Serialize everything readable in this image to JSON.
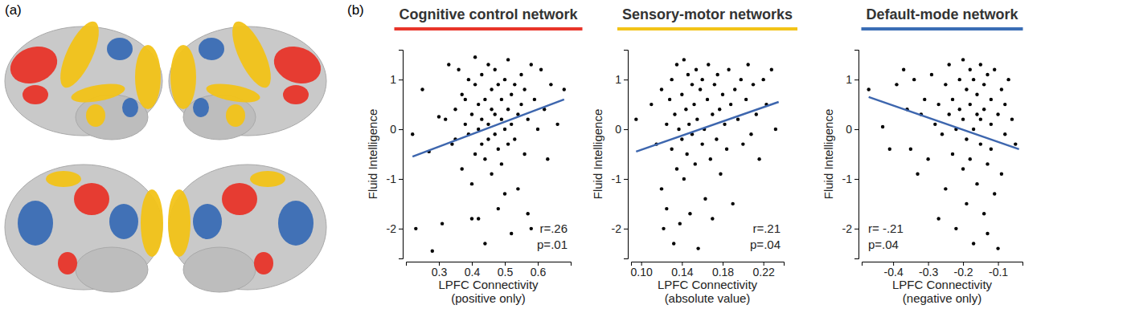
{
  "panel_labels": [
    "(a)",
    "(b)"
  ],
  "chart_data": [
    {
      "type": "scatter",
      "title": "Cognitive control network",
      "color": "#e8352a",
      "x_label": [
        "LPFC Connectivity",
        "(positive only)"
      ],
      "y_label": "Fluid Intelligence",
      "xlim": [
        0.2,
        0.7
      ],
      "xticks": [
        0.3,
        0.4,
        0.5,
        0.6
      ],
      "ylim": [
        -2.6,
        1.6
      ],
      "yticks": [
        -2,
        -1,
        0,
        1
      ],
      "annotations": [
        "r=.26",
        "p=.01"
      ],
      "series": [
        {
          "type": "scatter",
          "color": "#000000",
          "marker": "circle",
          "x": [
            0.22,
            0.23,
            0.25,
            0.27,
            0.28,
            0.3,
            0.31,
            0.32,
            0.33,
            0.34,
            0.35,
            0.35,
            0.36,
            0.37,
            0.37,
            0.38,
            0.38,
            0.39,
            0.39,
            0.4,
            0.4,
            0.4,
            0.41,
            0.41,
            0.41,
            0.42,
            0.42,
            0.42,
            0.43,
            0.43,
            0.43,
            0.44,
            0.44,
            0.44,
            0.45,
            0.45,
            0.45,
            0.46,
            0.46,
            0.46,
            0.47,
            0.47,
            0.47,
            0.48,
            0.48,
            0.48,
            0.49,
            0.49,
            0.49,
            0.5,
            0.5,
            0.5,
            0.51,
            0.51,
            0.51,
            0.52,
            0.52,
            0.52,
            0.53,
            0.53,
            0.54,
            0.54,
            0.55,
            0.55,
            0.56,
            0.56,
            0.57,
            0.57,
            0.58,
            0.58,
            0.59,
            0.6,
            0.61,
            0.62,
            0.63,
            0.64,
            0.66,
            0.68
          ],
          "values": [
            -0.1,
            -2.0,
            0.8,
            -0.45,
            -2.45,
            0.25,
            -1.9,
            0.2,
            1.3,
            -0.3,
            0.4,
            -0.2,
            1.2,
            0.7,
            -0.8,
            0.1,
            0.6,
            -0.1,
            1.0,
            -1.1,
            0.3,
            -1.8,
            0.9,
            1.45,
            -0.5,
            0.0,
            0.5,
            -1.8,
            -0.3,
            1.1,
            0.2,
            -2.3,
            0.6,
            -0.6,
            1.3,
            0.1,
            -0.2,
            0.8,
            -0.9,
            0.4,
            -0.1,
            1.2,
            0.3,
            -0.4,
            0.9,
            -1.6,
            0.2,
            0.6,
            -0.7,
            1.0,
            0.0,
            -1.3,
            0.4,
            1.4,
            -0.3,
            0.7,
            0.1,
            -2.1,
            -0.2,
            0.9,
            0.3,
            -1.2,
            1.1,
            0.5,
            -0.5,
            0.8,
            0.2,
            -1.7,
            1.3,
            -2.0,
            0.6,
            0.0,
            1.2,
            0.4,
            -0.6,
            0.9,
            0.1,
            0.8
          ]
        },
        {
          "type": "line",
          "color": "#3d66ae",
          "line_style": "solid",
          "x": [
            0.22,
            0.68
          ],
          "values": [
            -0.55,
            0.6
          ]
        }
      ]
    },
    {
      "type": "scatter",
      "title": "Sensory-motor networks",
      "color": "#f2c318",
      "x_label": [
        "LPFC Connectivity",
        "(absolute value)"
      ],
      "y_label": "Fluid Intelligence",
      "xlim": [
        0.09,
        0.24
      ],
      "xticks": [
        {
          "value": 0.1,
          "label": "0.10"
        },
        0.14,
        0.18,
        0.22
      ],
      "ylim": [
        -2.6,
        1.6
      ],
      "yticks": [
        -2,
        -1,
        0,
        1
      ],
      "annotations": [
        "r=.21",
        "p=.04"
      ],
      "series": [
        {
          "type": "scatter",
          "color": "#000000",
          "marker": "circle",
          "x": [
            0.095,
            0.11,
            0.115,
            0.12,
            0.12,
            0.122,
            0.125,
            0.125,
            0.128,
            0.13,
            0.13,
            0.132,
            0.133,
            0.135,
            0.135,
            0.137,
            0.138,
            0.14,
            0.14,
            0.142,
            0.142,
            0.144,
            0.145,
            0.146,
            0.147,
            0.148,
            0.15,
            0.15,
            0.152,
            0.153,
            0.154,
            0.155,
            0.156,
            0.158,
            0.16,
            0.16,
            0.162,
            0.163,
            0.165,
            0.166,
            0.168,
            0.17,
            0.17,
            0.172,
            0.174,
            0.175,
            0.177,
            0.178,
            0.18,
            0.182,
            0.184,
            0.186,
            0.188,
            0.19,
            0.192,
            0.195,
            0.198,
            0.2,
            0.203,
            0.205,
            0.208,
            0.21,
            0.213,
            0.216,
            0.22,
            0.223,
            0.228,
            0.232
          ],
          "values": [
            0.2,
            0.5,
            -0.3,
            0.8,
            -1.2,
            -2.0,
            0.1,
            -1.6,
            0.6,
            -0.4,
            1.0,
            -2.3,
            0.3,
            -0.8,
            1.3,
            0.0,
            -1.9,
            0.7,
            -0.2,
            1.4,
            -1.0,
            0.4,
            -0.5,
            1.1,
            0.1,
            -1.7,
            0.9,
            -0.1,
            0.5,
            -0.7,
            1.2,
            0.2,
            -2.4,
            0.8,
            -0.3,
            1.0,
            0.0,
            -1.4,
            0.6,
            1.3,
            -0.6,
            0.3,
            -1.8,
            0.9,
            -0.2,
            1.1,
            0.4,
            -0.9,
            0.7,
            0.1,
            -0.4,
            1.2,
            0.5,
            -1.5,
            0.8,
            0.2,
            1.0,
            -0.3,
            0.6,
            1.3,
            -0.1,
            0.9,
            0.3,
            -0.6,
            1.0,
            0.5,
            1.2,
            0.0
          ]
        },
        {
          "type": "line",
          "color": "#3d66ae",
          "line_style": "solid",
          "x": [
            0.095,
            0.235
          ],
          "values": [
            -0.45,
            0.55
          ]
        }
      ]
    },
    {
      "type": "scatter",
      "title": "Default-mode network",
      "color": "#3a6db5",
      "x_label": [
        "LPFC Connectivity",
        "(negative only)"
      ],
      "y_label": "Fluid Intelligence",
      "xlim": [
        -0.49,
        -0.03
      ],
      "xticks": [
        -0.4,
        -0.3,
        -0.2,
        -0.1
      ],
      "ylim": [
        -2.6,
        1.6
      ],
      "yticks": [
        -2,
        -1,
        0,
        1
      ],
      "annotations": [
        "r= -.21",
        "p=.04"
      ],
      "series": [
        {
          "type": "scatter",
          "color": "#000000",
          "marker": "circle",
          "x": [
            -0.47,
            -0.43,
            -0.41,
            -0.39,
            -0.37,
            -0.36,
            -0.35,
            -0.34,
            -0.33,
            -0.32,
            -0.31,
            -0.3,
            -0.29,
            -0.28,
            -0.27,
            -0.27,
            -0.26,
            -0.25,
            -0.25,
            -0.24,
            -0.24,
            -0.23,
            -0.23,
            -0.22,
            -0.22,
            -0.21,
            -0.21,
            -0.2,
            -0.2,
            -0.2,
            -0.19,
            -0.19,
            -0.19,
            -0.18,
            -0.18,
            -0.18,
            -0.17,
            -0.17,
            -0.17,
            -0.16,
            -0.16,
            -0.16,
            -0.15,
            -0.15,
            -0.15,
            -0.14,
            -0.14,
            -0.14,
            -0.13,
            -0.13,
            -0.13,
            -0.12,
            -0.12,
            -0.12,
            -0.11,
            -0.11,
            -0.1,
            -0.1,
            -0.09,
            -0.09,
            -0.08,
            -0.08,
            -0.07,
            -0.06,
            -0.05
          ],
          "values": [
            0.8,
            0.05,
            -0.4,
            0.9,
            1.2,
            0.4,
            -0.4,
            1.0,
            -0.9,
            0.3,
            0.6,
            -0.6,
            1.1,
            0.1,
            -1.8,
            0.5,
            -0.1,
            0.9,
            -1.2,
            0.3,
            1.3,
            -0.5,
            0.6,
            0.0,
            -2.0,
            1.0,
            0.4,
            -0.8,
            1.4,
            0.2,
            -0.2,
            0.8,
            -1.5,
            1.2,
            0.5,
            -0.6,
            0.0,
            1.0,
            -2.3,
            0.3,
            -1.1,
            0.7,
            1.3,
            -0.3,
            0.2,
            -1.7,
            0.9,
            0.4,
            -0.7,
            1.1,
            -2.1,
            0.1,
            0.6,
            -0.4,
            1.2,
            -1.3,
            0.3,
            -2.4,
            0.8,
            -0.9,
            0.5,
            -0.1,
            1.0,
            0.2,
            -0.3
          ]
        },
        {
          "type": "line",
          "color": "#3d66ae",
          "line_style": "solid",
          "x": [
            -0.47,
            -0.04
          ],
          "values": [
            0.65,
            -0.4
          ]
        }
      ]
    }
  ]
}
